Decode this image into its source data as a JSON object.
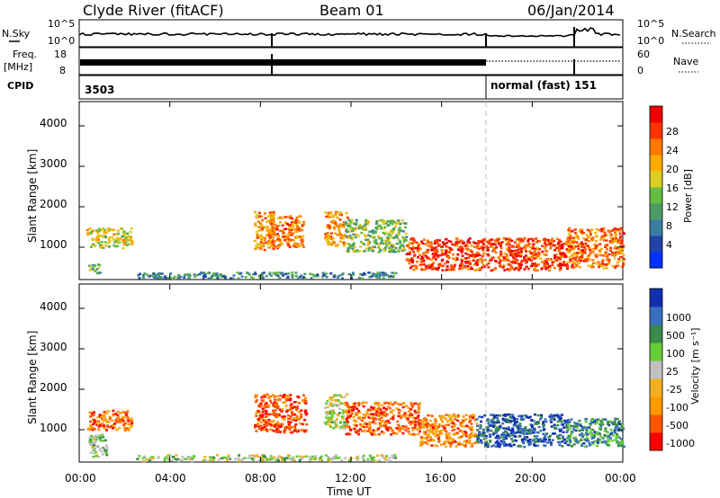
{
  "header": {
    "station": "Clyde River (fitACF)",
    "beam": "Beam 01",
    "date": "06/Jan/2014"
  },
  "nsky_panel": {
    "left_label": "N.Sky",
    "right_label": "N.Search",
    "left_ticks": [
      "10^5",
      "10^0"
    ],
    "right_ticks": [
      "10^5",
      "10^0"
    ]
  },
  "freq_panel": {
    "left_label_1": "Freq.",
    "left_label_2": "[MHz]",
    "right_label": "Nave",
    "left_ticks": [
      "18",
      "8"
    ],
    "right_ticks": [
      "60",
      "0"
    ]
  },
  "cpid_panel": {
    "label": "CPID",
    "mode_1": "3503",
    "mode_2": "normal (fast) 151"
  },
  "time_axis": {
    "label": "Time UT",
    "ticks": [
      "00:00",
      "04:00",
      "08:00",
      "12:00",
      "16:00",
      "20:00",
      "00:00"
    ]
  },
  "power_panel": {
    "ylabel": "Slant Range [km]",
    "yticks": [
      "4000",
      "3000",
      "2000",
      "1000"
    ],
    "colorbar_label": "Power [dB]",
    "colorbar_ticks": [
      "28",
      "24",
      "20",
      "16",
      "12",
      "8",
      "4"
    ]
  },
  "velocity_panel": {
    "ylabel": "Slant Range [km]",
    "yticks": [
      "4000",
      "3000",
      "2000",
      "1000"
    ],
    "colorbar_label": "Velocity [m s⁻¹]",
    "colorbar_ticks": [
      "1000",
      "500",
      "100",
      "25",
      "-25",
      "-100",
      "-500",
      "-1000"
    ]
  },
  "chart_data": [
    {
      "type": "heatmap",
      "name_shown": "Power",
      "x_unit": "hours UT",
      "xlim": [
        0,
        24
      ],
      "ylim": [
        200,
        4600
      ],
      "colorscale": [
        "#0033ff",
        "#2244aa",
        "#3a7fa0",
        "#4c9a66",
        "#66bb44",
        "#ddcc22",
        "#ffaa00",
        "#ff7700",
        "#ff3300",
        "#ee0000"
      ],
      "regions": [
        {
          "t": [
            0.3,
            2.3
          ],
          "r": [
            1000,
            1500
          ],
          "level": 0.55
        },
        {
          "t": [
            0.4,
            0.9
          ],
          "r": [
            350,
            600
          ],
          "level": 0.4
        },
        {
          "t": [
            7.7,
            8.6
          ],
          "r": [
            950,
            1900
          ],
          "level": 0.7
        },
        {
          "t": [
            8.3,
            9.9
          ],
          "r": [
            1000,
            1800
          ],
          "level": 0.75
        },
        {
          "t": [
            10.8,
            11.8
          ],
          "r": [
            1050,
            1900
          ],
          "level": 0.7
        },
        {
          "t": [
            11.7,
            14.4
          ],
          "r": [
            900,
            1700
          ],
          "level": 0.45
        },
        {
          "t": [
            14.4,
            21.5
          ],
          "r": [
            450,
            1250
          ],
          "level": 0.85
        },
        {
          "t": [
            21.5,
            24
          ],
          "r": [
            500,
            1500
          ],
          "level": 0.75
        },
        {
          "t": [
            2.5,
            14
          ],
          "r": [
            250,
            400
          ],
          "level": 0.3
        }
      ]
    },
    {
      "type": "heatmap",
      "name_shown": "Velocity",
      "x_unit": "hours UT",
      "xlim": [
        0,
        24
      ],
      "ylim": [
        200,
        4600
      ],
      "colorscale": [
        "#ff0000",
        "#ff5500",
        "#ff9900",
        "#f0b020",
        "#c0c0c0",
        "#66cc33",
        "#3a8a4a",
        "#3a6ec0",
        "#1030b0"
      ],
      "regions": [
        {
          "t": [
            0.3,
            2.3
          ],
          "r": [
            1000,
            1500
          ],
          "level": 0.22
        },
        {
          "t": [
            0.4,
            1.2
          ],
          "r": [
            300,
            900
          ],
          "level": 0.6
        },
        {
          "t": [
            7.7,
            10.0
          ],
          "r": [
            950,
            1900
          ],
          "level": 0.15
        },
        {
          "t": [
            10.8,
            11.8
          ],
          "r": [
            1050,
            1900
          ],
          "level": 0.5
        },
        {
          "t": [
            11.7,
            15.0
          ],
          "r": [
            900,
            1700
          ],
          "level": 0.2
        },
        {
          "t": [
            15.0,
            17.5
          ],
          "r": [
            600,
            1400
          ],
          "level": 0.25
        },
        {
          "t": [
            17.5,
            21.5
          ],
          "r": [
            600,
            1400
          ],
          "level": 0.85
        },
        {
          "t": [
            21.5,
            24
          ],
          "r": [
            600,
            1300
          ],
          "level": 0.75
        },
        {
          "t": [
            2.5,
            14
          ],
          "r": [
            250,
            400
          ],
          "level": 0.55
        }
      ]
    }
  ]
}
